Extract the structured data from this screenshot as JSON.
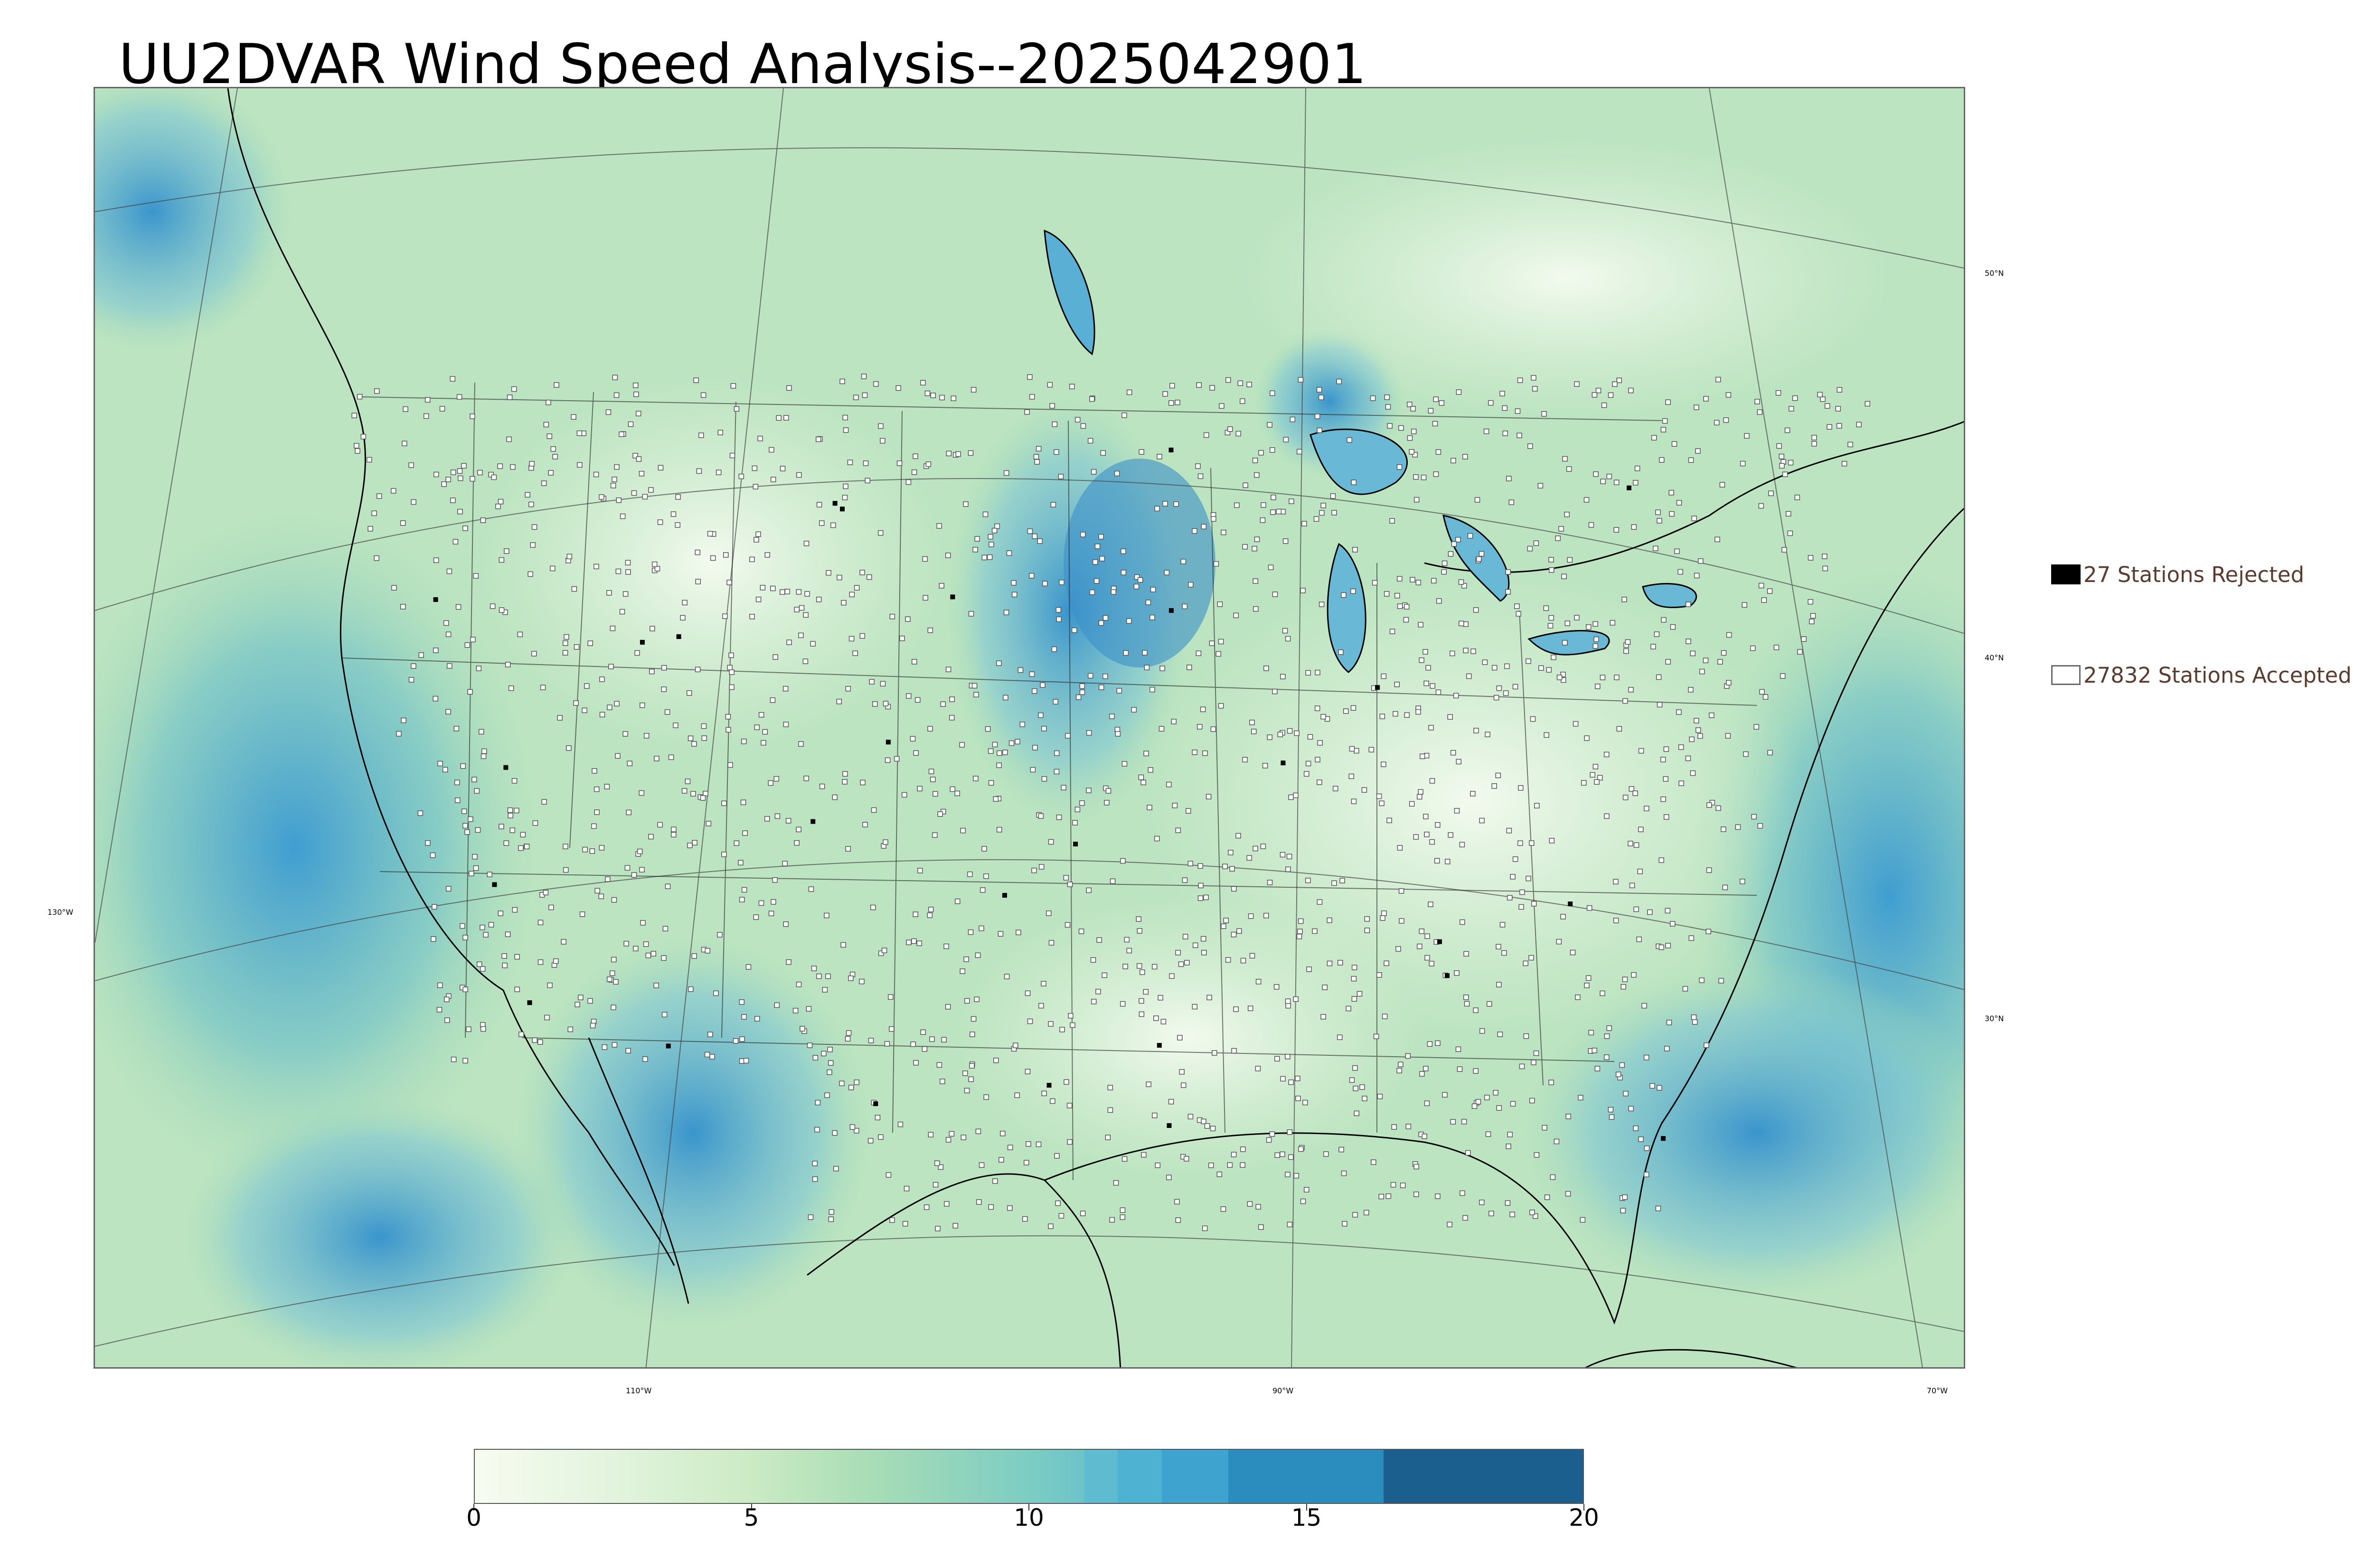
{
  "title": "UU2DVAR Wind Speed Analysis--2025042901",
  "legend": {
    "rejected_label": "27 Stations Rejected",
    "accepted_label": "27832 Stations Accepted"
  },
  "graticule": {
    "lat_labels": [
      "50°N",
      "40°N",
      "30°N"
    ],
    "lon_labels": [
      "130°W",
      "110°W",
      "90°W",
      "70°W"
    ]
  },
  "colorbar": {
    "ticks": [
      "0",
      "5",
      "10",
      "15",
      "20"
    ],
    "range": [
      0,
      20
    ],
    "colors": [
      "#f7fcf0",
      "#e0f3db",
      "#ccebc5",
      "#a8ddb5",
      "#7bccc4",
      "#4eb3d3",
      "#2b8cbe",
      "#0868ac",
      "#1b5f8e"
    ]
  },
  "colors": {
    "ocean_wind": "#7fc9c6",
    "land_base": "#d4eed0",
    "high_wind": "#3a9fd0",
    "coast": "#000000",
    "borders": "#222222",
    "station_edge": "#555555"
  },
  "stations": {
    "rejected": 27,
    "accepted": 27832
  }
}
